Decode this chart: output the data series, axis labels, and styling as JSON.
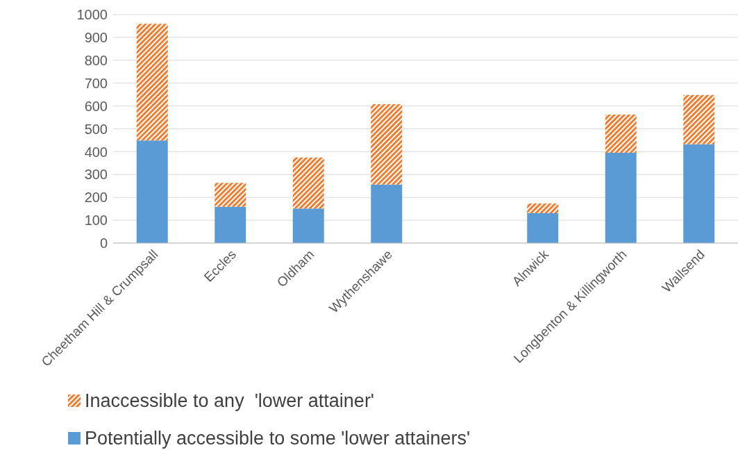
{
  "chart_data": {
    "type": "bar",
    "stacked": true,
    "categories": [
      "Cheetham Hill & Crumpsall",
      "Eccles",
      "Oldham",
      "Wythenshawe",
      null,
      "Alnwick",
      "Longbenton & Killingworth",
      "Wallsend"
    ],
    "series": [
      {
        "name": "Potentially accessible to some 'lower attainers'",
        "color": "#5b9bd5",
        "values": [
          449,
          159,
          151,
          256,
          null,
          131,
          395,
          432
        ]
      },
      {
        "name": "Inaccessible to any  'lower attainer'",
        "color": "#ed7d31",
        "values": [
          511,
          105,
          224,
          352,
          null,
          42,
          167,
          216
        ]
      }
    ],
    "ylim": [
      0,
      1000
    ],
    "yticks": [
      0,
      100,
      200,
      300,
      400,
      500,
      600,
      700,
      800,
      900,
      1000
    ],
    "grid": "y",
    "legend": "bottom"
  }
}
